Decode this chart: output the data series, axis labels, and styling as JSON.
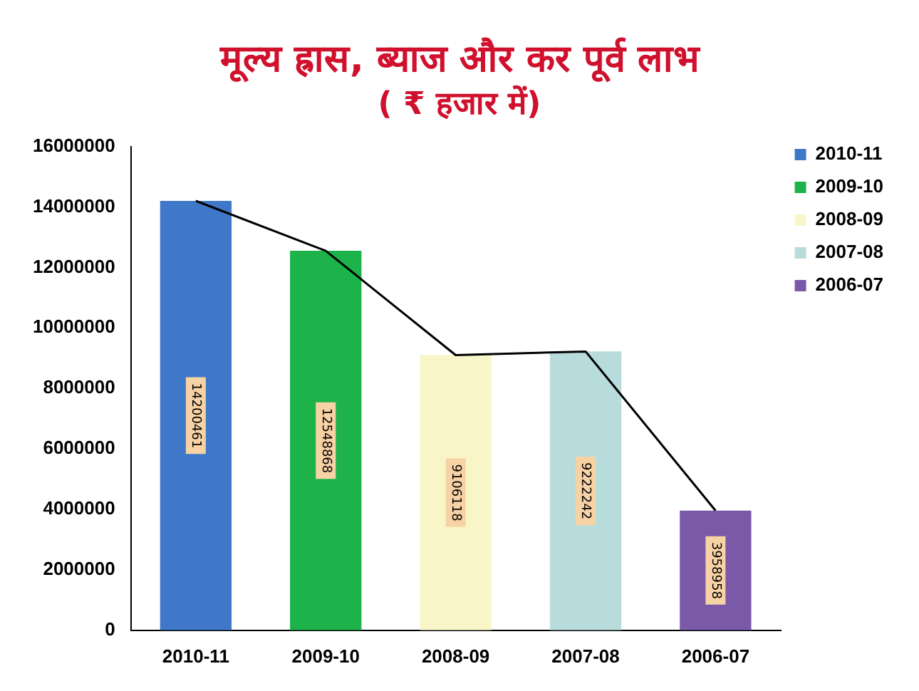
{
  "chart_data": {
    "type": "bar",
    "title": "मूल्य ह्रास, ब्याज और कर पूर्व लाभ",
    "subtitle": "( ₹ हजार में)",
    "categories": [
      "2010-11",
      "2009-10",
      "2008-09",
      "2007-08",
      "2006-07"
    ],
    "series": [
      {
        "name": "2010-11",
        "color": "#3f78c8",
        "values": [
          14200461,
          null,
          null,
          null,
          null
        ],
        "value_labels": [
          "14200461",
          null,
          null,
          null,
          null
        ]
      },
      {
        "name": "2009-10",
        "color": "#1db34a",
        "values": [
          null,
          12548868,
          null,
          null,
          null
        ],
        "value_labels": [
          null,
          "12548868",
          null,
          null,
          null
        ]
      },
      {
        "name": "2008-09",
        "color": "#f8f6c8",
        "values": [
          null,
          null,
          9106118,
          null,
          null
        ],
        "value_labels": [
          null,
          null,
          "9106118",
          null,
          null
        ]
      },
      {
        "name": "2007-08",
        "color": "#b8dcdc",
        "values": [
          null,
          null,
          null,
          9222242,
          null
        ],
        "value_labels": [
          null,
          null,
          null,
          "9222242",
          null
        ]
      },
      {
        "name": "2006-07",
        "color": "#7a5aa8",
        "values": [
          null,
          null,
          null,
          null,
          3958958
        ],
        "value_labels": [
          null,
          null,
          null,
          null,
          "3958958"
        ]
      },
      {
        "type": "line",
        "color": "#000000",
        "values": [
          14200000,
          12550000,
          9100000,
          9220000,
          3960000
        ]
      }
    ],
    "ylim": [
      0,
      16000000
    ],
    "yticks": [
      0,
      2000000,
      4000000,
      6000000,
      8000000,
      10000000,
      12000000,
      14000000,
      16000000
    ],
    "legend": "right",
    "marker": "none"
  }
}
